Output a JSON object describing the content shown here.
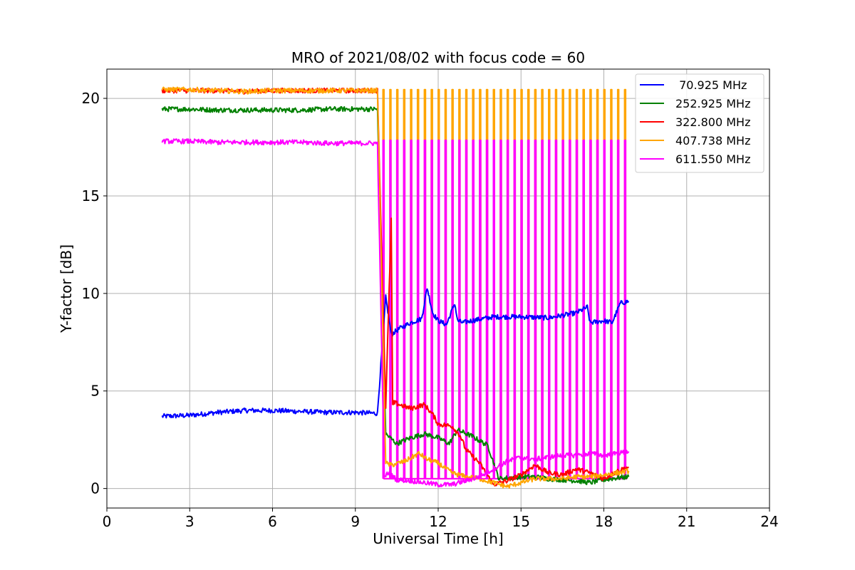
{
  "chart_data": {
    "type": "line",
    "title": "MRO of 2021/08/02 with focus code = 60",
    "xlabel": "Universal Time [h]",
    "ylabel": "Y-factor [dB]",
    "xlim": [
      0,
      24
    ],
    "ylim": [
      -1,
      21.5
    ],
    "xticks": [
      0,
      3,
      6,
      9,
      12,
      15,
      18,
      21,
      24
    ],
    "xtick_labels": [
      "0",
      "3",
      "6",
      "9",
      "12",
      "15",
      "18",
      "21",
      "24"
    ],
    "yticks": [
      0,
      5,
      10,
      15,
      20
    ],
    "ytick_labels": [
      "0",
      "5",
      "10",
      "15",
      "20"
    ],
    "grid": true,
    "legend_position": "top-right",
    "series": [
      {
        "name": " 70.925 MHz",
        "color": "#0000ff",
        "x": [
          2.0,
          3.0,
          4.0,
          5.0,
          6.0,
          7.0,
          8.0,
          9.0,
          9.8,
          10.1,
          10.3,
          10.6,
          11.0,
          11.4,
          11.6,
          11.8,
          12.0,
          12.3,
          12.6,
          12.7,
          12.9,
          13.2,
          13.6,
          14.0,
          15.0,
          16.0,
          16.6,
          17.0,
          17.4,
          17.5,
          18.0,
          18.3,
          18.6,
          18.9
        ],
        "y": [
          3.7,
          3.75,
          3.9,
          4.0,
          4.0,
          3.95,
          3.9,
          3.9,
          3.85,
          9.8,
          7.9,
          8.2,
          8.5,
          8.7,
          10.3,
          9.0,
          8.6,
          8.4,
          9.5,
          8.6,
          8.5,
          8.6,
          8.7,
          8.8,
          8.8,
          8.75,
          8.9,
          9.0,
          9.3,
          8.5,
          8.6,
          8.5,
          9.5,
          9.6
        ]
      },
      {
        "name": "252.925 MHz",
        "color": "#008000",
        "x": [
          2.0,
          3.0,
          4.0,
          5.0,
          6.0,
          7.0,
          8.0,
          9.0,
          9.8,
          10.1,
          10.5,
          11.0,
          11.5,
          12.0,
          12.4,
          12.7,
          13.2,
          13.8,
          14.2,
          15.0,
          15.5,
          16.0,
          16.5,
          17.0,
          17.5,
          18.0,
          18.5,
          18.9
        ],
        "y": [
          19.45,
          19.45,
          19.4,
          19.4,
          19.4,
          19.4,
          19.45,
          19.45,
          19.45,
          2.8,
          2.3,
          2.6,
          2.8,
          2.6,
          2.3,
          3.0,
          2.7,
          2.2,
          0.5,
          0.6,
          0.6,
          0.5,
          0.45,
          0.4,
          0.3,
          0.45,
          0.55,
          0.6
        ]
      },
      {
        "name": "322.800 MHz",
        "color": "#ff0000",
        "x": [
          2.0,
          3.0,
          4.0,
          5.0,
          6.0,
          7.0,
          8.0,
          9.0,
          9.8,
          10.1,
          10.3,
          10.35,
          10.4,
          10.6,
          11.0,
          11.5,
          11.8,
          12.0,
          12.5,
          12.8,
          13.0,
          13.5,
          14.0,
          14.5,
          15.0,
          15.5,
          16.0,
          16.5,
          17.0,
          17.5,
          18.0,
          18.5,
          18.9
        ],
        "y": [
          20.4,
          20.4,
          20.4,
          20.35,
          20.4,
          20.4,
          20.4,
          20.4,
          20.4,
          4.2,
          13.8,
          4.2,
          4.4,
          4.3,
          4.1,
          4.3,
          3.8,
          3.3,
          3.2,
          2.7,
          2.0,
          1.3,
          0.2,
          0.4,
          0.7,
          1.2,
          0.8,
          0.7,
          1.0,
          0.8,
          0.5,
          0.9,
          1.1
        ]
      },
      {
        "name": "407.738 MHz",
        "color": "#ffa500",
        "x": [
          2.0,
          3.0,
          4.0,
          5.0,
          6.0,
          7.0,
          8.0,
          9.0,
          9.8,
          10.1,
          10.3,
          10.8,
          11.3,
          11.6,
          12.0,
          12.5,
          13.0,
          13.5,
          14.0,
          14.5,
          15.0,
          15.5,
          16.0,
          16.5,
          17.0,
          17.5,
          18.0,
          18.5,
          18.9
        ],
        "y": [
          20.45,
          20.45,
          20.4,
          20.35,
          20.4,
          20.4,
          20.4,
          20.4,
          20.4,
          1.3,
          1.2,
          1.4,
          1.8,
          1.5,
          1.3,
          0.8,
          0.6,
          0.5,
          0.3,
          0.1,
          0.3,
          0.5,
          0.5,
          0.5,
          0.6,
          0.6,
          0.7,
          0.8,
          0.9
        ]
      },
      {
        "name": "611.550 MHz",
        "color": "#ff00ff",
        "x": [
          2.0,
          3.0,
          4.0,
          5.0,
          6.0,
          7.0,
          8.0,
          9.0,
          9.8,
          10.05,
          10.2,
          10.5,
          11.0,
          11.5,
          12.0,
          12.5,
          13.0,
          13.5,
          14.0,
          14.5,
          15.0,
          15.5,
          16.0,
          16.5,
          17.0,
          17.5,
          18.0,
          18.5,
          18.9
        ],
        "y": [
          17.8,
          17.8,
          17.75,
          17.75,
          17.75,
          17.75,
          17.7,
          17.7,
          17.7,
          0.6,
          0.8,
          0.45,
          0.4,
          0.3,
          0.2,
          0.2,
          0.4,
          0.6,
          1.0,
          1.4,
          1.6,
          1.5,
          1.6,
          1.7,
          1.7,
          1.8,
          1.7,
          1.8,
          1.9
        ]
      }
    ],
    "cycling": {
      "x_start": 10.0,
      "x_end": 18.85,
      "period": 0.25,
      "upper_levels": [
        {
          "color": "#ffa500",
          "y": 20.45
        },
        {
          "color": "#ff00ff",
          "y": 17.85
        }
      ],
      "lower_level": 0.5
    }
  }
}
